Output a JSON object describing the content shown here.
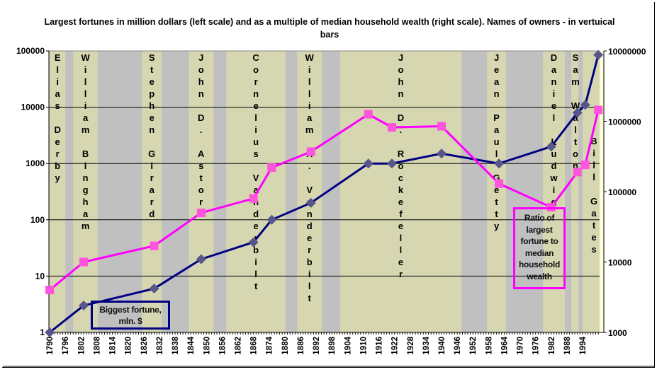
{
  "chart_data": {
    "type": "line",
    "title": "Largest fortunes in million dollars (left scale) and as a multiple of median household wealth (right scale). Names of owners - in vertuical bars",
    "x_ticks": [
      1790,
      1796,
      1802,
      1808,
      1814,
      1820,
      1826,
      1832,
      1838,
      1844,
      1850,
      1856,
      1862,
      1868,
      1874,
      1880,
      1886,
      1892,
      1898,
      1904,
      1910,
      1916,
      1922,
      1928,
      1934,
      1940,
      1946,
      1952,
      1958,
      1964,
      1970,
      1976,
      1982,
      1988,
      1994
    ],
    "xlim": [
      1789.7,
      2000.5
    ],
    "left_axis": {
      "scale": "log",
      "ylim": [
        1,
        100000
      ],
      "ticks": [
        "1",
        "10",
        "100",
        "1000",
        "10000",
        "100000"
      ]
    },
    "right_axis": {
      "scale": "log",
      "ylim": [
        1000,
        10000000
      ],
      "ticks": [
        "1000",
        "10000",
        "100000",
        "1000000",
        "10000000"
      ]
    },
    "grid": true,
    "series": [
      {
        "name": "Biggest fortune, mln. $",
        "axis": "left",
        "color": "#000080",
        "marker_color": "#56568A",
        "x": [
          1790,
          1803,
          1830,
          1848,
          1868,
          1875,
          1890,
          1912,
          1921,
          1940,
          1962,
          1982,
          1992,
          1995,
          2000
        ],
        "y": [
          1,
          3,
          6,
          20,
          40,
          100,
          200,
          1000,
          1000,
          1500,
          1000,
          2000,
          8000,
          11000,
          85000
        ]
      },
      {
        "name": "Ratio of largest fortune to median household wealth",
        "axis": "right",
        "color": "#FF00FF",
        "marker_color": "#FF55DD",
        "x": [
          1790,
          1803,
          1830,
          1848,
          1868,
          1875,
          1890,
          1912,
          1921,
          1940,
          1962,
          1982,
          1992,
          1995,
          2000
        ],
        "y": [
          4000,
          10000,
          17000,
          50000,
          80000,
          220000,
          370000,
          1260000,
          820000,
          850000,
          130000,
          60000,
          190000,
          240000,
          1450000
        ]
      }
    ],
    "owner_bars": [
      {
        "name": "Elias Derby",
        "start": 1790,
        "end": 1796
      },
      {
        "name": "William Bingham",
        "start": 1799,
        "end": 1808.4
      },
      {
        "name": "Stephen Girard",
        "start": 1825.3,
        "end": 1832.9
      },
      {
        "name": "John D. Astor",
        "start": 1843.2,
        "end": 1852.7
      },
      {
        "name": "Cornelius Vanderbilt",
        "start": 1857.6,
        "end": 1880.3
      },
      {
        "name": "William H. Vanderbilt",
        "start": 1884.7,
        "end": 1894.2
      },
      {
        "name": "John D. Rockefeller",
        "start": 1901.2,
        "end": 1947.6
      },
      {
        "name": "Jean Paul Getty",
        "start": 1957.4,
        "end": 1964.7
      },
      {
        "name": "Daniel Ludwig",
        "start": 1978.8,
        "end": 1987.2
      },
      {
        "name": "Sam Walton",
        "start": 1989.7,
        "end": 1992.4
      },
      {
        "name": "Bill Gates",
        "start": 1994,
        "end": 2000.5
      }
    ],
    "annotations": {
      "fortune_box": "Biggest fortune, mln. $",
      "ratio_box": "Ratio of largest fortune to median household wealth"
    },
    "colors": {
      "bar": "#D6D6B0",
      "gap": "#C0C0C0",
      "right_strip": "#FFFFDD"
    }
  }
}
